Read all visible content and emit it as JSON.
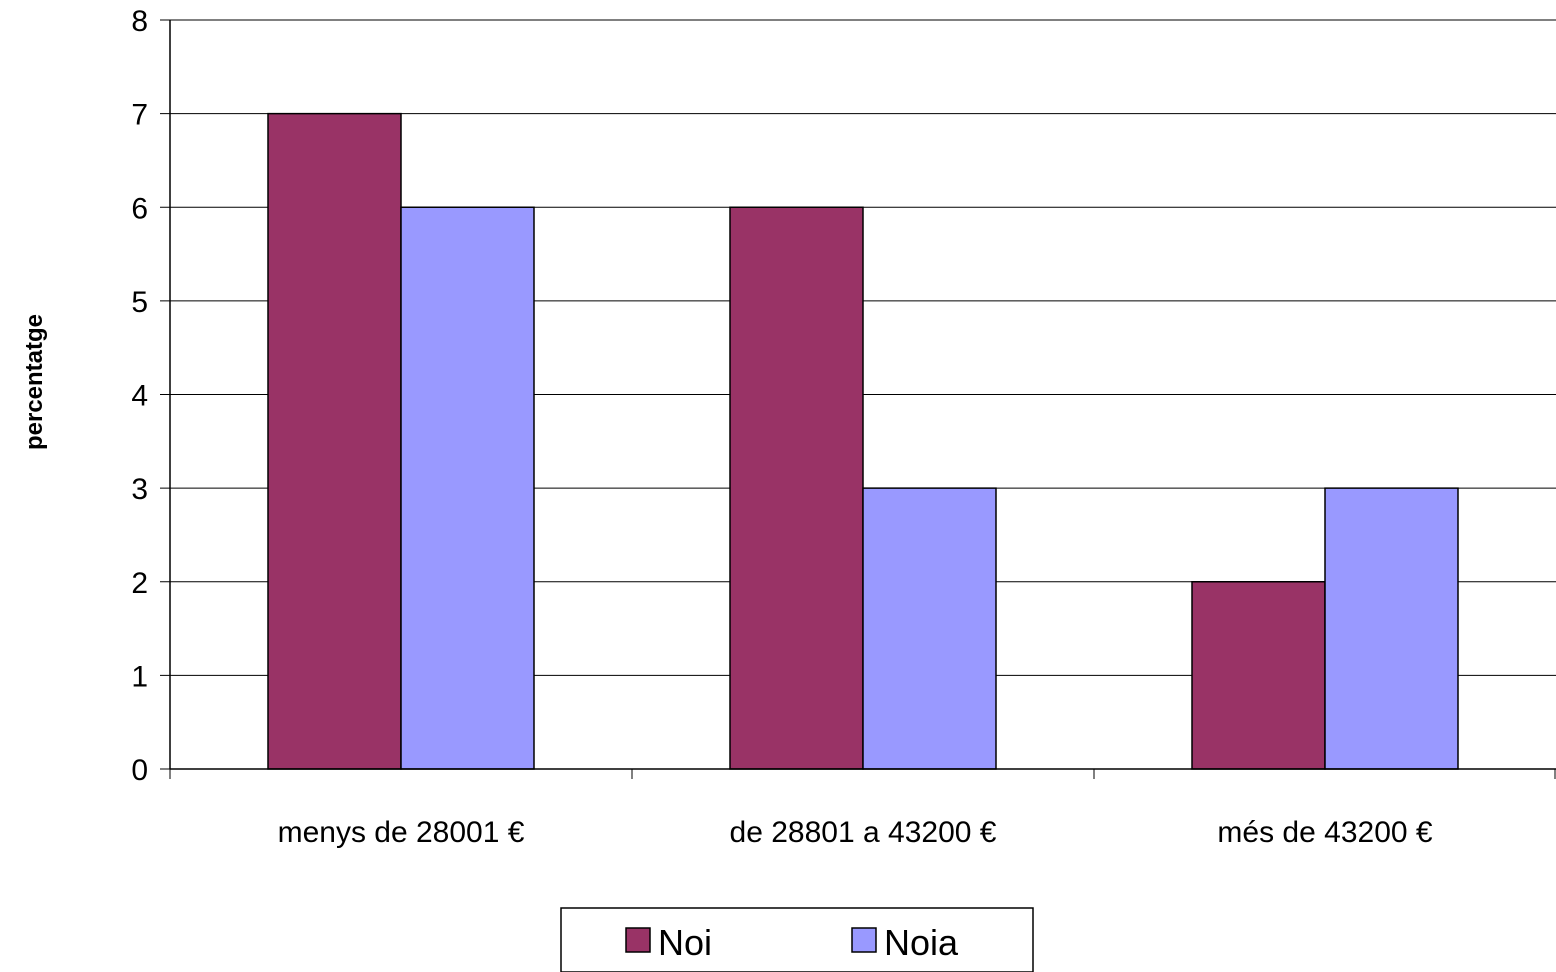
{
  "chart_data": {
    "type": "bar",
    "categories": [
      "menys de 28001 €",
      "de 28801 a 43200 €",
      "més de 43200 €"
    ],
    "series": [
      {
        "name": "Noi",
        "values": [
          7,
          6,
          2
        ],
        "color": "#993366"
      },
      {
        "name": "Noia",
        "values": [
          6,
          3,
          3
        ],
        "color": "#9999FF"
      }
    ],
    "xlabel": "",
    "ylabel": "percentatge",
    "ylim": [
      0,
      8
    ],
    "yticks": [
      0,
      1,
      2,
      3,
      4,
      5,
      6,
      7,
      8
    ],
    "grid": true,
    "legend_position": "bottom"
  }
}
